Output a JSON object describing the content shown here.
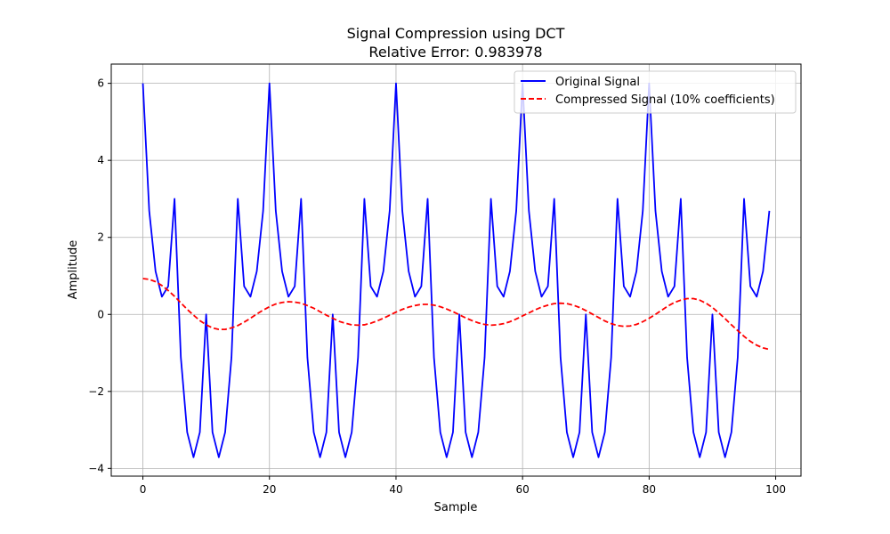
{
  "chart_data": {
    "type": "line",
    "title": "Signal Compression using DCT",
    "subtitle": "Relative Error: 0.983978",
    "xlabel": "Sample",
    "ylabel": "Amplitude",
    "xlim": [
      -5,
      104
    ],
    "ylim": [
      -4.2,
      6.5
    ],
    "xticks": [
      0,
      20,
      40,
      60,
      80,
      100
    ],
    "yticks": [
      -4,
      -2,
      0,
      2,
      4,
      6
    ],
    "grid": true,
    "legend_position": "top-right",
    "x": [
      0,
      1,
      2,
      3,
      4,
      5,
      6,
      7,
      8,
      9,
      10,
      11,
      12,
      13,
      14,
      15,
      16,
      17,
      18,
      19,
      20,
      21,
      22,
      23,
      24,
      25,
      26,
      27,
      28,
      29,
      30,
      31,
      32,
      33,
      34,
      35,
      36,
      37,
      38,
      39,
      40,
      41,
      42,
      43,
      44,
      45,
      46,
      47,
      48,
      49,
      50,
      51,
      52,
      53,
      54,
      55,
      56,
      57,
      58,
      59,
      60,
      61,
      62,
      63,
      64,
      65,
      66,
      67,
      68,
      69,
      70,
      71,
      72,
      73,
      74,
      75,
      76,
      77,
      78,
      79,
      80,
      81,
      82,
      83,
      84,
      85,
      86,
      87,
      88,
      89,
      90,
      91,
      92,
      93,
      94,
      95,
      96,
      97,
      98,
      99
    ],
    "series": [
      {
        "name": "Original Signal",
        "color": "#0000ff",
        "style": "solid",
        "values": [
          6.0,
          2.69,
          1.12,
          0.46,
          0.73,
          3.0,
          -1.12,
          -3.06,
          -3.71,
          -3.06,
          0.0,
          -3.06,
          -3.71,
          -3.06,
          -1.12,
          3.0,
          0.73,
          0.46,
          1.12,
          2.69,
          6.0,
          2.69,
          1.12,
          0.46,
          0.73,
          3.0,
          -1.12,
          -3.06,
          -3.71,
          -3.06,
          0.0,
          -3.06,
          -3.71,
          -3.06,
          -1.12,
          3.0,
          0.73,
          0.46,
          1.12,
          2.69,
          6.0,
          2.69,
          1.12,
          0.46,
          0.73,
          3.0,
          -1.12,
          -3.06,
          -3.71,
          -3.06,
          0.0,
          -3.06,
          -3.71,
          -3.06,
          -1.12,
          3.0,
          0.73,
          0.46,
          1.12,
          2.69,
          6.0,
          2.69,
          1.12,
          0.46,
          0.73,
          3.0,
          -1.12,
          -3.06,
          -3.71,
          -3.06,
          0.0,
          -3.06,
          -3.71,
          -3.06,
          -1.12,
          3.0,
          0.73,
          0.46,
          1.12,
          2.69,
          6.0,
          2.69,
          1.12,
          0.46,
          0.73,
          3.0,
          -1.12,
          -3.06,
          -3.71,
          -3.06,
          0.0,
          -3.06,
          -3.71,
          -3.06,
          -1.12,
          3.0,
          0.73,
          0.46,
          1.12,
          2.69
        ]
      },
      {
        "name": "Compressed Signal (10% coefficients)",
        "color": "#ff0000",
        "style": "dashed",
        "values": [
          0.93,
          0.91,
          0.85,
          0.75,
          0.62,
          0.47,
          0.3,
          0.13,
          -0.02,
          -0.16,
          -0.27,
          -0.35,
          -0.39,
          -0.39,
          -0.35,
          -0.29,
          -0.2,
          -0.1,
          0.01,
          0.11,
          0.2,
          0.27,
          0.31,
          0.33,
          0.32,
          0.29,
          0.23,
          0.16,
          0.07,
          -0.02,
          -0.1,
          -0.18,
          -0.23,
          -0.27,
          -0.28,
          -0.27,
          -0.23,
          -0.17,
          -0.1,
          -0.02,
          0.06,
          0.13,
          0.19,
          0.23,
          0.26,
          0.26,
          0.24,
          0.2,
          0.14,
          0.07,
          -0.01,
          -0.09,
          -0.16,
          -0.22,
          -0.26,
          -0.28,
          -0.27,
          -0.24,
          -0.19,
          -0.12,
          -0.04,
          0.04,
          0.12,
          0.19,
          0.24,
          0.28,
          0.29,
          0.28,
          0.24,
          0.18,
          0.1,
          0.01,
          -0.08,
          -0.17,
          -0.24,
          -0.29,
          -0.31,
          -0.3,
          -0.26,
          -0.19,
          -0.1,
          0.0,
          0.11,
          0.22,
          0.31,
          0.37,
          0.41,
          0.41,
          0.37,
          0.29,
          0.18,
          0.04,
          -0.11,
          -0.27,
          -0.42,
          -0.57,
          -0.7,
          -0.8,
          -0.87,
          -0.91
        ]
      }
    ]
  }
}
